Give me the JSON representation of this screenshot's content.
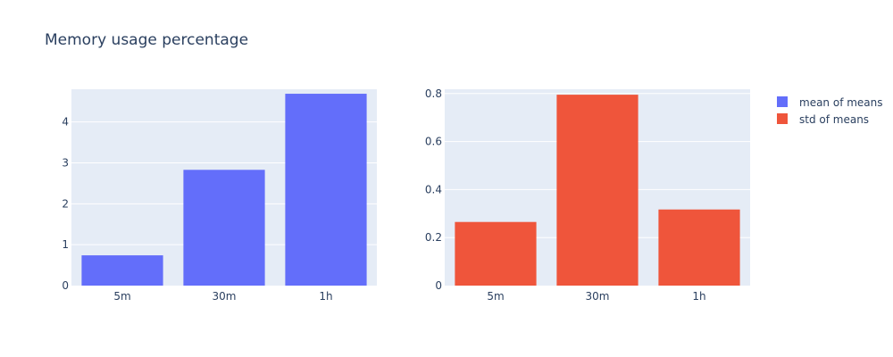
{
  "title": "Memory usage percentage",
  "legend": {
    "placement": "top-right",
    "items": [
      {
        "label": "mean of means",
        "color": "#636efa"
      },
      {
        "label": "std of means",
        "color": "#ef553b"
      }
    ]
  },
  "chart_data": [
    {
      "type": "bar",
      "categories": [
        "5m",
        "30m",
        "1h"
      ],
      "series": [
        {
          "name": "mean of means",
          "values": [
            0.74,
            2.83,
            4.69
          ],
          "color": "#636efa"
        }
      ],
      "ylim": [
        0,
        4.8
      ],
      "yticks": [
        0,
        1,
        2,
        3,
        4
      ],
      "ytick_labels": [
        "0",
        "1",
        "2",
        "3",
        "4"
      ],
      "grid": true
    },
    {
      "type": "bar",
      "categories": [
        "5m",
        "30m",
        "1h"
      ],
      "series": [
        {
          "name": "std of means",
          "values": [
            0.265,
            0.795,
            0.317
          ],
          "color": "#ef553b"
        }
      ],
      "ylim": [
        0,
        0.8177
      ],
      "yticks": [
        0,
        0.2,
        0.4,
        0.6,
        0.8
      ],
      "ytick_labels": [
        "0",
        "0.2",
        "0.4",
        "0.6",
        "0.8"
      ],
      "grid": true
    }
  ]
}
